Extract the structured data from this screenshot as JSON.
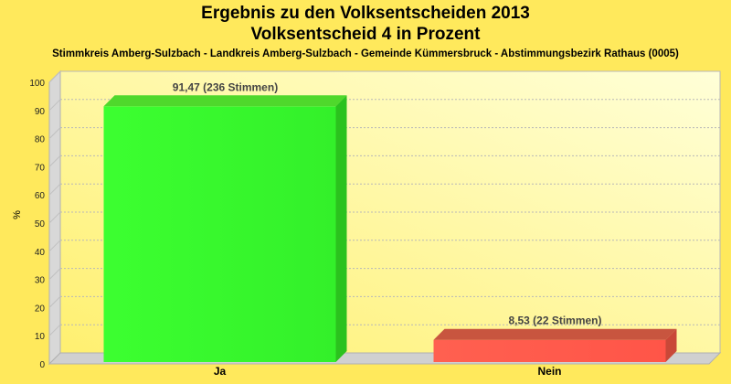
{
  "title_line1": "Ergebnis zu den Volksentscheiden 2013",
  "title_line2": "Volksentscheid 4 in Prozent",
  "subtitle": "Stimmkreis Amberg-Sulzbach - Landkreis Amberg-Sulzbach - Gemeinde Kümmersbruck - Abstimmungsbezirk Rathaus (0005)",
  "chart_data": {
    "type": "bar",
    "categories": [
      "Ja",
      "Nein"
    ],
    "values": [
      91.47,
      8.53
    ],
    "data_labels": [
      "91,47 (236 Stimmen)",
      "8,53 (22 Stimmen)"
    ],
    "colors": [
      "#33FF33",
      "#FF5555"
    ],
    "ylabel": "%",
    "ylim": [
      0,
      100
    ],
    "yticks": [
      0,
      10,
      20,
      30,
      40,
      50,
      60,
      70,
      80,
      90,
      100
    ],
    "grid": true,
    "legend": "none"
  }
}
